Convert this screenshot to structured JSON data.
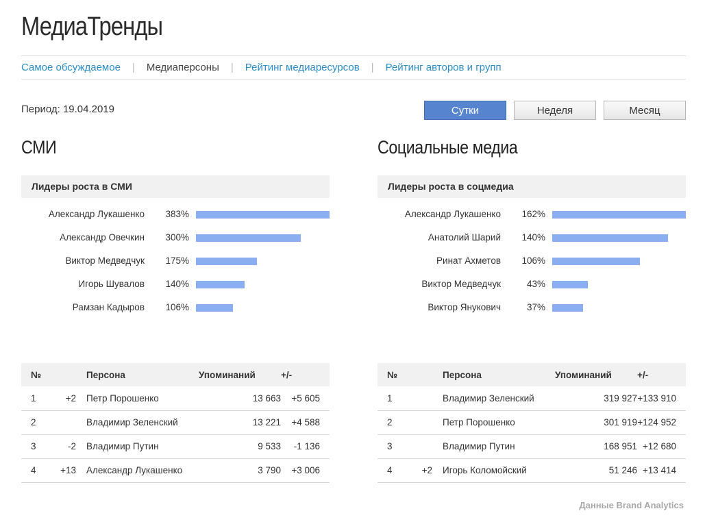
{
  "app": {
    "title": "МедиаТренды"
  },
  "nav": {
    "items": [
      {
        "label": "Самое обсуждаемое",
        "active": false
      },
      {
        "label": "Медиаперсоны",
        "active": true
      },
      {
        "label": "Рейтинг медиаресурсов",
        "active": false
      },
      {
        "label": "Рейтинг авторов и групп",
        "active": false
      }
    ],
    "separator": "|"
  },
  "period": {
    "label": "Период: 19.04.2019",
    "buttons": [
      {
        "label": "Сутки",
        "active": true
      },
      {
        "label": "Неделя",
        "active": false
      },
      {
        "label": "Месяц",
        "active": false
      }
    ]
  },
  "sections": [
    {
      "title": "СМИ",
      "leaders_title": "Лидеры роста в СМИ",
      "leaders": [
        {
          "name": "Александр Лукашенко",
          "percent_label": "383%",
          "value": 383
        },
        {
          "name": "Александр Овечкин",
          "percent_label": "300%",
          "value": 300
        },
        {
          "name": "Виктор Медведчук",
          "percent_label": "175%",
          "value": 175
        },
        {
          "name": "Игорь Шувалов",
          "percent_label": "140%",
          "value": 140
        },
        {
          "name": "Рамзан Кадыров",
          "percent_label": "106%",
          "value": 106
        }
      ],
      "table": {
        "headers": {
          "num": "№",
          "person": "Персона",
          "mentions": "Упоминаний",
          "delta": "+/-"
        },
        "rows": [
          {
            "num": "1",
            "change": "+2",
            "person": "Петр Порошенко",
            "mentions": "13 663",
            "delta": "+5 605"
          },
          {
            "num": "2",
            "change": "",
            "person": "Владимир Зеленский",
            "mentions": "13 221",
            "delta": "+4 588"
          },
          {
            "num": "3",
            "change": "-2",
            "person": "Владимир Путин",
            "mentions": "9 533",
            "delta": "-1 136"
          },
          {
            "num": "4",
            "change": "+13",
            "person": "Александр Лукашенко",
            "mentions": "3 790",
            "delta": "+3 006"
          }
        ]
      }
    },
    {
      "title": "Социальные медиа",
      "leaders_title": "Лидеры роста в соцмедиа",
      "leaders": [
        {
          "name": "Александр Лукашенко",
          "percent_label": "162%",
          "value": 162
        },
        {
          "name": "Анатолий Шарий",
          "percent_label": "140%",
          "value": 140
        },
        {
          "name": "Ринат Ахметов",
          "percent_label": "106%",
          "value": 106
        },
        {
          "name": "Виктор Медведчук",
          "percent_label": "43%",
          "value": 43
        },
        {
          "name": "Виктор Янукович",
          "percent_label": "37%",
          "value": 37
        }
      ],
      "table": {
        "headers": {
          "num": "№",
          "person": "Персона",
          "mentions": "Упоминаний",
          "delta": "+/-"
        },
        "rows": [
          {
            "num": "1",
            "change": "",
            "person": "Владимир Зеленский",
            "mentions": "319 927",
            "delta": "+133 910"
          },
          {
            "num": "2",
            "change": "",
            "person": "Петр Порошенко",
            "mentions": "301 919",
            "delta": "+124 952"
          },
          {
            "num": "3",
            "change": "",
            "person": "Владимир Путин",
            "mentions": "168 951",
            "delta": "+12 680"
          },
          {
            "num": "4",
            "change": "+2",
            "person": "Игорь Коломойский",
            "mentions": "51 246",
            "delta": "+13 414"
          }
        ]
      }
    }
  ],
  "footer": {
    "text": "Данные Brand Analytics"
  },
  "colors": {
    "accent": "#5684cf",
    "link": "#2b8ec9",
    "bar": "#8aaef0",
    "positive": "#22a046",
    "negative": "#d32222"
  }
}
